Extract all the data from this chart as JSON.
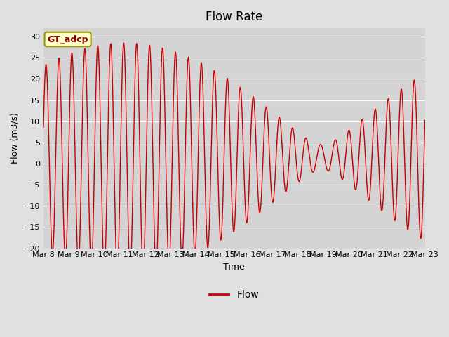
{
  "title": "Flow Rate",
  "xlabel": "Time",
  "ylabel": "Flow (m3/s)",
  "legend_label": "Flow",
  "annotation_text": "GT_adcp",
  "ylim": [
    -20,
    32
  ],
  "yticks": [
    -20,
    -15,
    -10,
    -5,
    0,
    5,
    10,
    15,
    20,
    25,
    30
  ],
  "fig_bg_color": "#e0e0e0",
  "plot_bg_color": "#d4d4d4",
  "line_color": "#cc0000",
  "xtick_labels": [
    "Mar 8",
    "Mar 9",
    "Mar 10",
    "Mar 11",
    "Mar 12",
    "Mar 13",
    "Mar 14",
    "Mar 15",
    "Mar 16",
    "Mar 17",
    "Mar 18",
    "Mar 19",
    "Mar 20",
    "Mar 21",
    "Mar 22",
    "Mar 23"
  ],
  "num_days": 15,
  "tidal_period_hours": 12.4,
  "tidal_period2_hours": 12.0,
  "title_fontsize": 12,
  "tick_fontsize": 8,
  "ylabel_fontsize": 9,
  "xlabel_fontsize": 9
}
